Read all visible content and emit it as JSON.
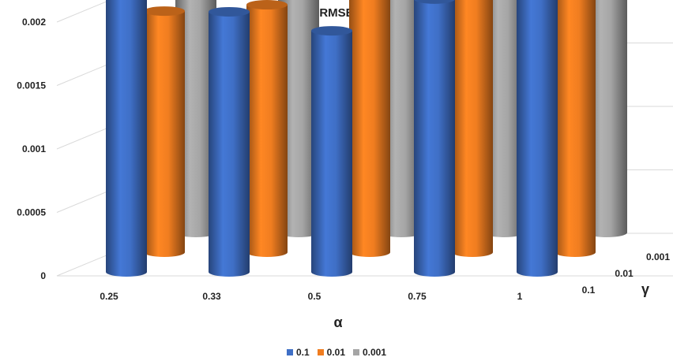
{
  "chart_data": {
    "type": "bar",
    "title": "RMSE",
    "xlabel": "α",
    "zlabel": "γ",
    "categories": [
      "0.25",
      "0.33",
      "0.5",
      "0.75",
      "1"
    ],
    "ylim": [
      0,
      0.0035
    ],
    "y_ticks": [
      "0",
      "0.0005",
      "0.001",
      "0.0015",
      "0.002",
      "0.0025",
      "0.003",
      "0.0035"
    ],
    "series": [
      {
        "name": "0.1",
        "color": "#3f6fc6",
        "values": [
          0.0024,
          0.00205,
          0.0019,
          0.00215,
          0.00245
        ]
      },
      {
        "name": "0.01",
        "color": "#f07d20",
        "values": [
          0.0019,
          0.00195,
          0.00215,
          0.00215,
          0.00265
        ]
      },
      {
        "name": "0.001",
        "color": "#a5a5a5",
        "values": [
          0.0032,
          0.0032,
          0.0029,
          0.003,
          0.00265
        ]
      }
    ],
    "grid": true,
    "legend_position": "bottom"
  }
}
